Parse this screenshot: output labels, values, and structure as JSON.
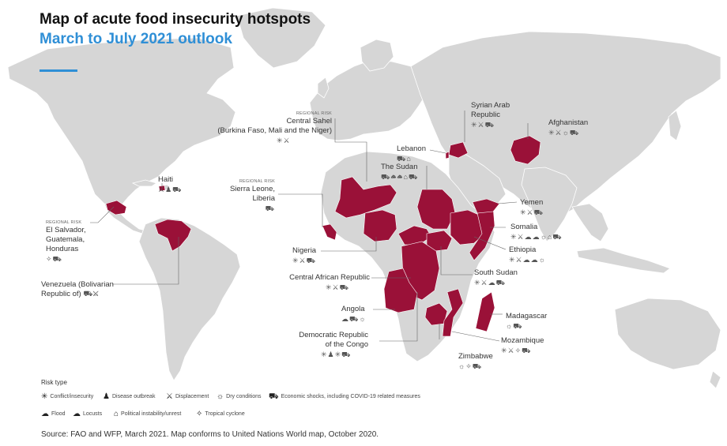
{
  "header": {
    "title": "Map of acute food insecurity hotspots",
    "subtitle": "March to July 2021 outlook"
  },
  "colors": {
    "hotspot": "#9a1138",
    "land": "#d6d6d6",
    "ocean": "#ffffff",
    "accent": "#2f8fd6"
  },
  "map": {
    "regional_risk_tag": "REGIONAL RISK",
    "labels": {
      "central_sahel": {
        "name": "Central Sahel",
        "detail": "(Burkina Faso, Mali and the Niger)",
        "icons": "✳⚔"
      },
      "haiti": {
        "name": "Haiti",
        "icons": "⚔♟⛟"
      },
      "sierra_leone": {
        "name": "Sierra Leone,",
        "name2": "Liberia",
        "icons": "⛟"
      },
      "el_salvador": {
        "name": "El Salvador,",
        "name2": "Guatemala,",
        "name3": "Honduras",
        "icons": "✧⛟"
      },
      "venezuela": {
        "name": "Venezuela (Bolivarian",
        "name2": "Republic of)",
        "icons": "⛟⚔"
      },
      "nigeria": {
        "name": "Nigeria",
        "icons": "✳⚔⛟"
      },
      "car": {
        "name": "Central African Republic",
        "icons": "✳⚔⛟"
      },
      "angola": {
        "name": "Angola",
        "icons": "☁⛟☼"
      },
      "drc": {
        "name": "Democratic Republic",
        "name2": "of the Congo",
        "icons": "✳♟✳⛟"
      },
      "syria": {
        "name": "Syrian Arab",
        "name2": "Republic",
        "icons": "✳⚔⛟"
      },
      "afghanistan": {
        "name": "Afghanistan",
        "icons": "✳⚔☼⛟"
      },
      "lebanon": {
        "name": "Lebanon",
        "icons": "⛟⌂"
      },
      "sudan": {
        "name": "The Sudan",
        "icons": "⛟☁☁⌂⛟"
      },
      "yemen": {
        "name": "Yemen",
        "icons": "✳⚔⛟"
      },
      "somalia": {
        "name": "Somalia",
        "icons": "✳⚔☁☁☼⌂⛟"
      },
      "ethiopia": {
        "name": "Ethiopia",
        "icons": "✳⚔☁☁☼"
      },
      "south_sudan": {
        "name": "South Sudan",
        "icons": "✳⚔☁⛟"
      },
      "madagascar": {
        "name": "Madagascar",
        "icons": "☼⛟"
      },
      "mozambique": {
        "name": "Mozambique",
        "icons": "✳⚔✧⛟"
      },
      "zimbabwe": {
        "name": "Zimbabwe",
        "icons": "☼✧⛟"
      }
    }
  },
  "legend": {
    "title": "Risk type",
    "items": [
      {
        "glyph": "✳",
        "icon": "conflict-insecurity-icon",
        "label": "Conflict/insecurity"
      },
      {
        "glyph": "♟",
        "icon": "disease-outbreak-icon",
        "label": "Disease outbreak"
      },
      {
        "glyph": "⚔",
        "icon": "displacement-icon",
        "label": "Displacement"
      },
      {
        "glyph": "☼",
        "icon": "dry-conditions-icon",
        "label": "Dry conditions"
      },
      {
        "glyph": "⛟",
        "icon": "economic-shocks-icon",
        "label": "Economic shocks, including COVID-19 related measures"
      },
      {
        "glyph": "☁",
        "icon": "flood-icon",
        "label": "Flood"
      },
      {
        "glyph": "☁",
        "icon": "locusts-icon",
        "label": "Locusts"
      },
      {
        "glyph": "⌂",
        "icon": "political-instability-icon",
        "label": "Political instability/unrest"
      },
      {
        "glyph": "✧",
        "icon": "tropical-cyclone-icon",
        "label": "Tropical cyclone"
      }
    ]
  },
  "source": "Source: FAO and WFP, March 2021. Map conforms to United Nations World map, October 2020."
}
